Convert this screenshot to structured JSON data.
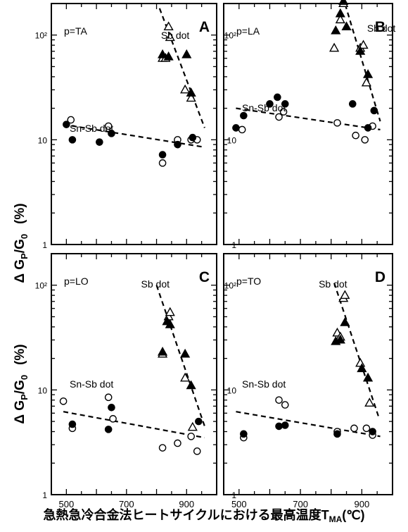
{
  "figure": {
    "y_axis_label": "Δ G",
    "y_axis_label_sub_p": "P",
    "y_axis_label_rest": "/G",
    "y_axis_label_sub_0": "0",
    "y_axis_label_unit": "(%)",
    "x_axis_label": "急熱急冷合金法ヒートサイクルにおける最高温度T",
    "x_axis_label_sub": "MA",
    "x_axis_label_unit": "(℃)",
    "y_tick_labels": [
      "1",
      "10",
      "10²"
    ],
    "x_tick_labels": [
      "500",
      "700",
      "900"
    ]
  },
  "markers": {
    "sn_sb_open": "open circle",
    "sn_sb_filled": "filled circle",
    "sb_open": "open triangle",
    "sb_filled": "filled triangle"
  },
  "chart_data": [
    {
      "type": "scatter",
      "panel_letter": "A",
      "condition": "p=TA",
      "xlim": [
        450,
        1000
      ],
      "ylim": [
        1,
        200
      ],
      "yscale": "log",
      "series": [
        {
          "name": "Sn-Sb dot",
          "marker": "circle",
          "open": [
            [
              515,
              15.5
            ],
            [
              640,
              13.5
            ],
            [
              820,
              6
            ],
            [
              870,
              10
            ],
            [
              915,
              10
            ],
            [
              935,
              10
            ]
          ],
          "filled": [
            [
              500,
              14
            ],
            [
              520,
              10
            ],
            [
              610,
              9.5
            ],
            [
              650,
              11.5
            ],
            [
              820,
              7.2
            ],
            [
              870,
              9
            ],
            [
              920,
              10.5
            ]
          ],
          "trend": [
            [
              490,
              14
            ],
            [
              960,
              8.5
            ]
          ]
        },
        {
          "name": "Sb dot",
          "marker": "triangle",
          "open": [
            [
              820,
              60
            ],
            [
              830,
              60
            ],
            [
              840,
              120
            ],
            [
              845,
              95
            ],
            [
              895,
              30
            ],
            [
              915,
              25
            ]
          ],
          "filled": [
            [
              820,
              65
            ],
            [
              840,
              62
            ],
            [
              900,
              65
            ],
            [
              915,
              28
            ]
          ],
          "trend": [
            [
              810,
              180
            ],
            [
              960,
              13
            ]
          ]
        }
      ]
    },
    {
      "type": "scatter",
      "panel_letter": "B",
      "condition": "p=LA",
      "xlim": [
        450,
        1000
      ],
      "ylim": [
        1,
        200
      ],
      "yscale": "log",
      "series": [
        {
          "name": "Sn-Sb dot",
          "marker": "circle",
          "open": [
            [
              510,
              12.5
            ],
            [
              630,
              16.5
            ],
            [
              645,
              18.5
            ],
            [
              820,
              14.5
            ],
            [
              880,
              11
            ],
            [
              910,
              10
            ],
            [
              935,
              13.5
            ]
          ],
          "filled": [
            [
              490,
              13
            ],
            [
              515,
              17
            ],
            [
              600,
              22
            ],
            [
              625,
              25.5
            ],
            [
              650,
              22
            ],
            [
              870,
              22
            ],
            [
              920,
              13
            ],
            [
              940,
              19
            ]
          ],
          "trend": [
            [
              490,
              20
            ],
            [
              960,
              12.5
            ]
          ]
        },
        {
          "name": "Sb dot",
          "marker": "triangle",
          "open": [
            [
              810,
              75
            ],
            [
              830,
              140
            ],
            [
              840,
              200
            ],
            [
              895,
              75
            ],
            [
              905,
              80
            ],
            [
              915,
              35
            ]
          ],
          "filled": [
            [
              815,
              110
            ],
            [
              830,
              160
            ],
            [
              840,
              210
            ],
            [
              850,
              120
            ],
            [
              895,
              70
            ],
            [
              920,
              42
            ]
          ],
          "trend": [
            [
              830,
              280
            ],
            [
              960,
              15
            ]
          ]
        }
      ]
    },
    {
      "type": "scatter",
      "panel_letter": "C",
      "condition": "p=LO",
      "xlim": [
        450,
        1000
      ],
      "ylim": [
        1,
        200
      ],
      "yscale": "log",
      "series": [
        {
          "name": "Sn-Sb dot",
          "marker": "circle",
          "open": [
            [
              490,
              7.8
            ],
            [
              520,
              4.3
            ],
            [
              640,
              8.5
            ],
            [
              655,
              5.3
            ],
            [
              820,
              2.8
            ],
            [
              870,
              3.1
            ],
            [
              915,
              3.6
            ],
            [
              935,
              2.6
            ]
          ],
          "filled": [
            [
              520,
              4.7
            ],
            [
              640,
              4.2
            ],
            [
              650,
              6.8
            ],
            [
              940,
              5
            ]
          ],
          "trend": [
            [
              490,
              6.2
            ],
            [
              960,
              3.5
            ]
          ]
        },
        {
          "name": "Sb dot",
          "marker": "triangle",
          "open": [
            [
              820,
              22
            ],
            [
              840,
              50
            ],
            [
              845,
              55
            ],
            [
              895,
              13
            ],
            [
              920,
              4.4
            ]
          ],
          "filled": [
            [
              820,
              23
            ],
            [
              835,
              45
            ],
            [
              845,
              42
            ],
            [
              895,
              22
            ],
            [
              915,
              11
            ]
          ],
          "trend": [
            [
              800,
              100
            ],
            [
              960,
              4.5
            ]
          ]
        }
      ]
    },
    {
      "type": "scatter",
      "panel_letter": "D",
      "condition": "p=TO",
      "xlim": [
        450,
        1000
      ],
      "ylim": [
        1,
        200
      ],
      "yscale": "log",
      "series": [
        {
          "name": "Sn-Sb dot",
          "marker": "circle",
          "open": [
            [
              515,
              3.5
            ],
            [
              630,
              8
            ],
            [
              650,
              7.2
            ],
            [
              820,
              4
            ],
            [
              875,
              4.3
            ],
            [
              915,
              4.3
            ],
            [
              935,
              3.7
            ]
          ],
          "filled": [
            [
              515,
              3.8
            ],
            [
              630,
              4.5
            ],
            [
              650,
              4.6
            ],
            [
              820,
              3.8
            ],
            [
              935,
              4
            ]
          ],
          "trend": [
            [
              490,
              6.2
            ],
            [
              960,
              3.6
            ]
          ]
        },
        {
          "name": "Sb dot",
          "marker": "triangle",
          "open": [
            [
              820,
              35
            ],
            [
              830,
              32
            ],
            [
              840,
              75
            ],
            [
              845,
              80
            ],
            [
              895,
              18
            ],
            [
              925,
              7.5
            ]
          ],
          "filled": [
            [
              815,
              29
            ],
            [
              830,
              30
            ],
            [
              845,
              44
            ],
            [
              900,
              16
            ],
            [
              920,
              13
            ]
          ],
          "trend": [
            [
              810,
              105
            ],
            [
              955,
              5.5
            ]
          ]
        }
      ]
    }
  ]
}
